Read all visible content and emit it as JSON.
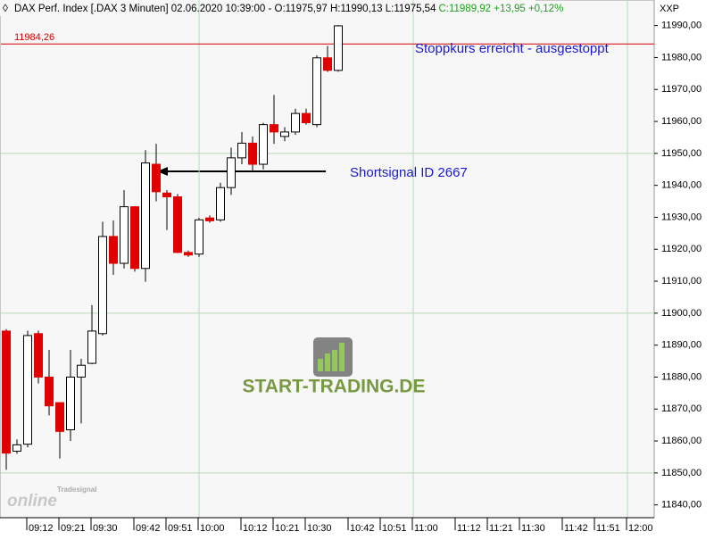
{
  "chart_data": {
    "type": "candlestick",
    "title": "DAX Perf. Index [.DAX  3 Minuten] 02.06.2020 10:39:00 - O:11975,97 H:11990,13 L:11975,54",
    "title_quote": "C:11989,92 +13,95 +0,12%",
    "axis_name": "XXP",
    "categories": [
      null,
      null,
      "09:12",
      null,
      null,
      "09:21",
      null,
      null,
      "09:30",
      null,
      null,
      null,
      "09:42",
      null,
      null,
      "09:51",
      null,
      null,
      "10:00",
      null,
      null,
      null,
      "10:12",
      null,
      null,
      "10:21",
      null,
      null,
      "10:30",
      null,
      null,
      null,
      "10:42",
      null,
      null,
      "10:51",
      null,
      null,
      "11:00",
      null,
      null,
      null,
      "11:12",
      null,
      null,
      "11:21",
      null,
      null,
      "11:30",
      null,
      null,
      null,
      "11:42",
      null,
      null,
      "11:51",
      null,
      null,
      "12:00",
      null,
      null
    ],
    "open": [
      11894.4,
      11856.8,
      11859,
      11893.6,
      11880,
      11872,
      11863.5,
      11880,
      11884.3,
      11893.6,
      11924,
      11915.6,
      11933.3,
      11914,
      11946.6,
      11937.6,
      11936.4,
      11919,
      11918.5,
      11929.8,
      11929.2,
      11939.3,
      11948.6,
      11953.2,
      11946.6,
      11959,
      11955.3,
      11956.7,
      11962.5,
      11959,
      11979.9,
      11975.97,
      null,
      null,
      null,
      null,
      null,
      null,
      null,
      null,
      null,
      null,
      null,
      null,
      null,
      null,
      null,
      null,
      null,
      null,
      null,
      null,
      null,
      null,
      null,
      null,
      null,
      null,
      null,
      null,
      null
    ],
    "high": [
      11895,
      11860.5,
      11894.5,
      11894.5,
      11888.5,
      11872,
      11888.5,
      11885.7,
      11902.5,
      11928.6,
      11929,
      11938.5,
      11933.5,
      11951,
      11953,
      11938.5,
      11937.3,
      11919.6,
      11929.8,
      11930.6,
      11940.8,
      11951.8,
      11956.7,
      11955.3,
      11959.6,
      11968.3,
      11958.2,
      11964,
      11964,
      11980.7,
      11983.6,
      11990.13,
      null,
      null,
      null,
      null,
      null,
      null,
      null,
      null,
      null,
      null,
      null,
      null,
      null,
      null,
      null,
      null,
      null,
      null,
      null,
      null,
      null,
      null,
      null,
      null,
      null,
      null,
      null,
      null,
      null
    ],
    "low": [
      11851,
      11856,
      11858,
      11878,
      11868,
      11854.5,
      11860,
      11865.5,
      11884,
      11893,
      11912,
      11914,
      11913,
      11909.8,
      11935,
      11926,
      11918.8,
      11917.6,
      11917.6,
      11928.3,
      11928.6,
      11937,
      11946.6,
      11944.3,
      11945,
      11953,
      11953.8,
      11955.8,
      11959,
      11958.2,
      11975.5,
      11975.54,
      null,
      null,
      null,
      null,
      null,
      null,
      null,
      null,
      null,
      null,
      null,
      null,
      null,
      null,
      null,
      null,
      null,
      null,
      null,
      null,
      null,
      null,
      null,
      null,
      null,
      null,
      null,
      null,
      null
    ],
    "close": [
      11856.2,
      11858.8,
      11893,
      11880,
      11871,
      11863,
      11880,
      11883.7,
      11894.4,
      11924,
      11915.6,
      11933.3,
      11914,
      11947,
      11938,
      11936.4,
      11919,
      11918.2,
      11929.2,
      11928.9,
      11939.3,
      11948.6,
      11953.2,
      11946.6,
      11959,
      11956.7,
      11956.7,
      11962.5,
      11959.6,
      11979.9,
      11976,
      11989.92,
      null,
      null,
      null,
      null,
      null,
      null,
      null,
      null,
      null,
      null,
      null,
      null,
      null,
      null,
      null,
      null,
      null,
      null,
      null,
      null,
      null,
      null,
      null,
      null,
      null,
      null,
      null,
      null,
      null
    ],
    "up_color": "#ffffff",
    "down_color": "#e00000",
    "ylim": [
      11836,
      11998
    ],
    "yticks": [
      {
        "value": 11840,
        "label": "11840,00"
      },
      {
        "value": 11850,
        "label": "11850,00"
      },
      {
        "value": 11860,
        "label": "11860,00"
      },
      {
        "value": 11870,
        "label": "11870,00"
      },
      {
        "value": 11880,
        "label": "11880,00"
      },
      {
        "value": 11890,
        "label": "11890,00"
      },
      {
        "value": 11900,
        "label": "11900,00"
      },
      {
        "value": 11910,
        "label": "11910,00"
      },
      {
        "value": 11920,
        "label": "11920,00"
      },
      {
        "value": 11930,
        "label": "11930,00"
      },
      {
        "value": 11940,
        "label": "11940,00"
      },
      {
        "value": 11950,
        "label": "11950,00"
      },
      {
        "value": 11960,
        "label": "11960,00"
      },
      {
        "value": 11970,
        "label": "11970,00"
      },
      {
        "value": 11980,
        "label": "11980,00"
      },
      {
        "value": 11990,
        "label": "11990,00"
      }
    ],
    "y_grid": [
      11850,
      11900,
      11950
    ],
    "x_grid": [
      "10:00",
      "11:00",
      "12:00"
    ],
    "grid_color": "#b8d8b8",
    "reference_line": {
      "value": 11984.26,
      "label": "11984,26",
      "color": "#d00000"
    },
    "annotations": [
      "Stoppkurs erreicht - ausgestoppt",
      "Shortsignal ID 2667"
    ]
  },
  "watermark": {
    "logo": "START-TRADING.DE",
    "brand_top": "Tradesignal",
    "brand_bottom": "online"
  }
}
